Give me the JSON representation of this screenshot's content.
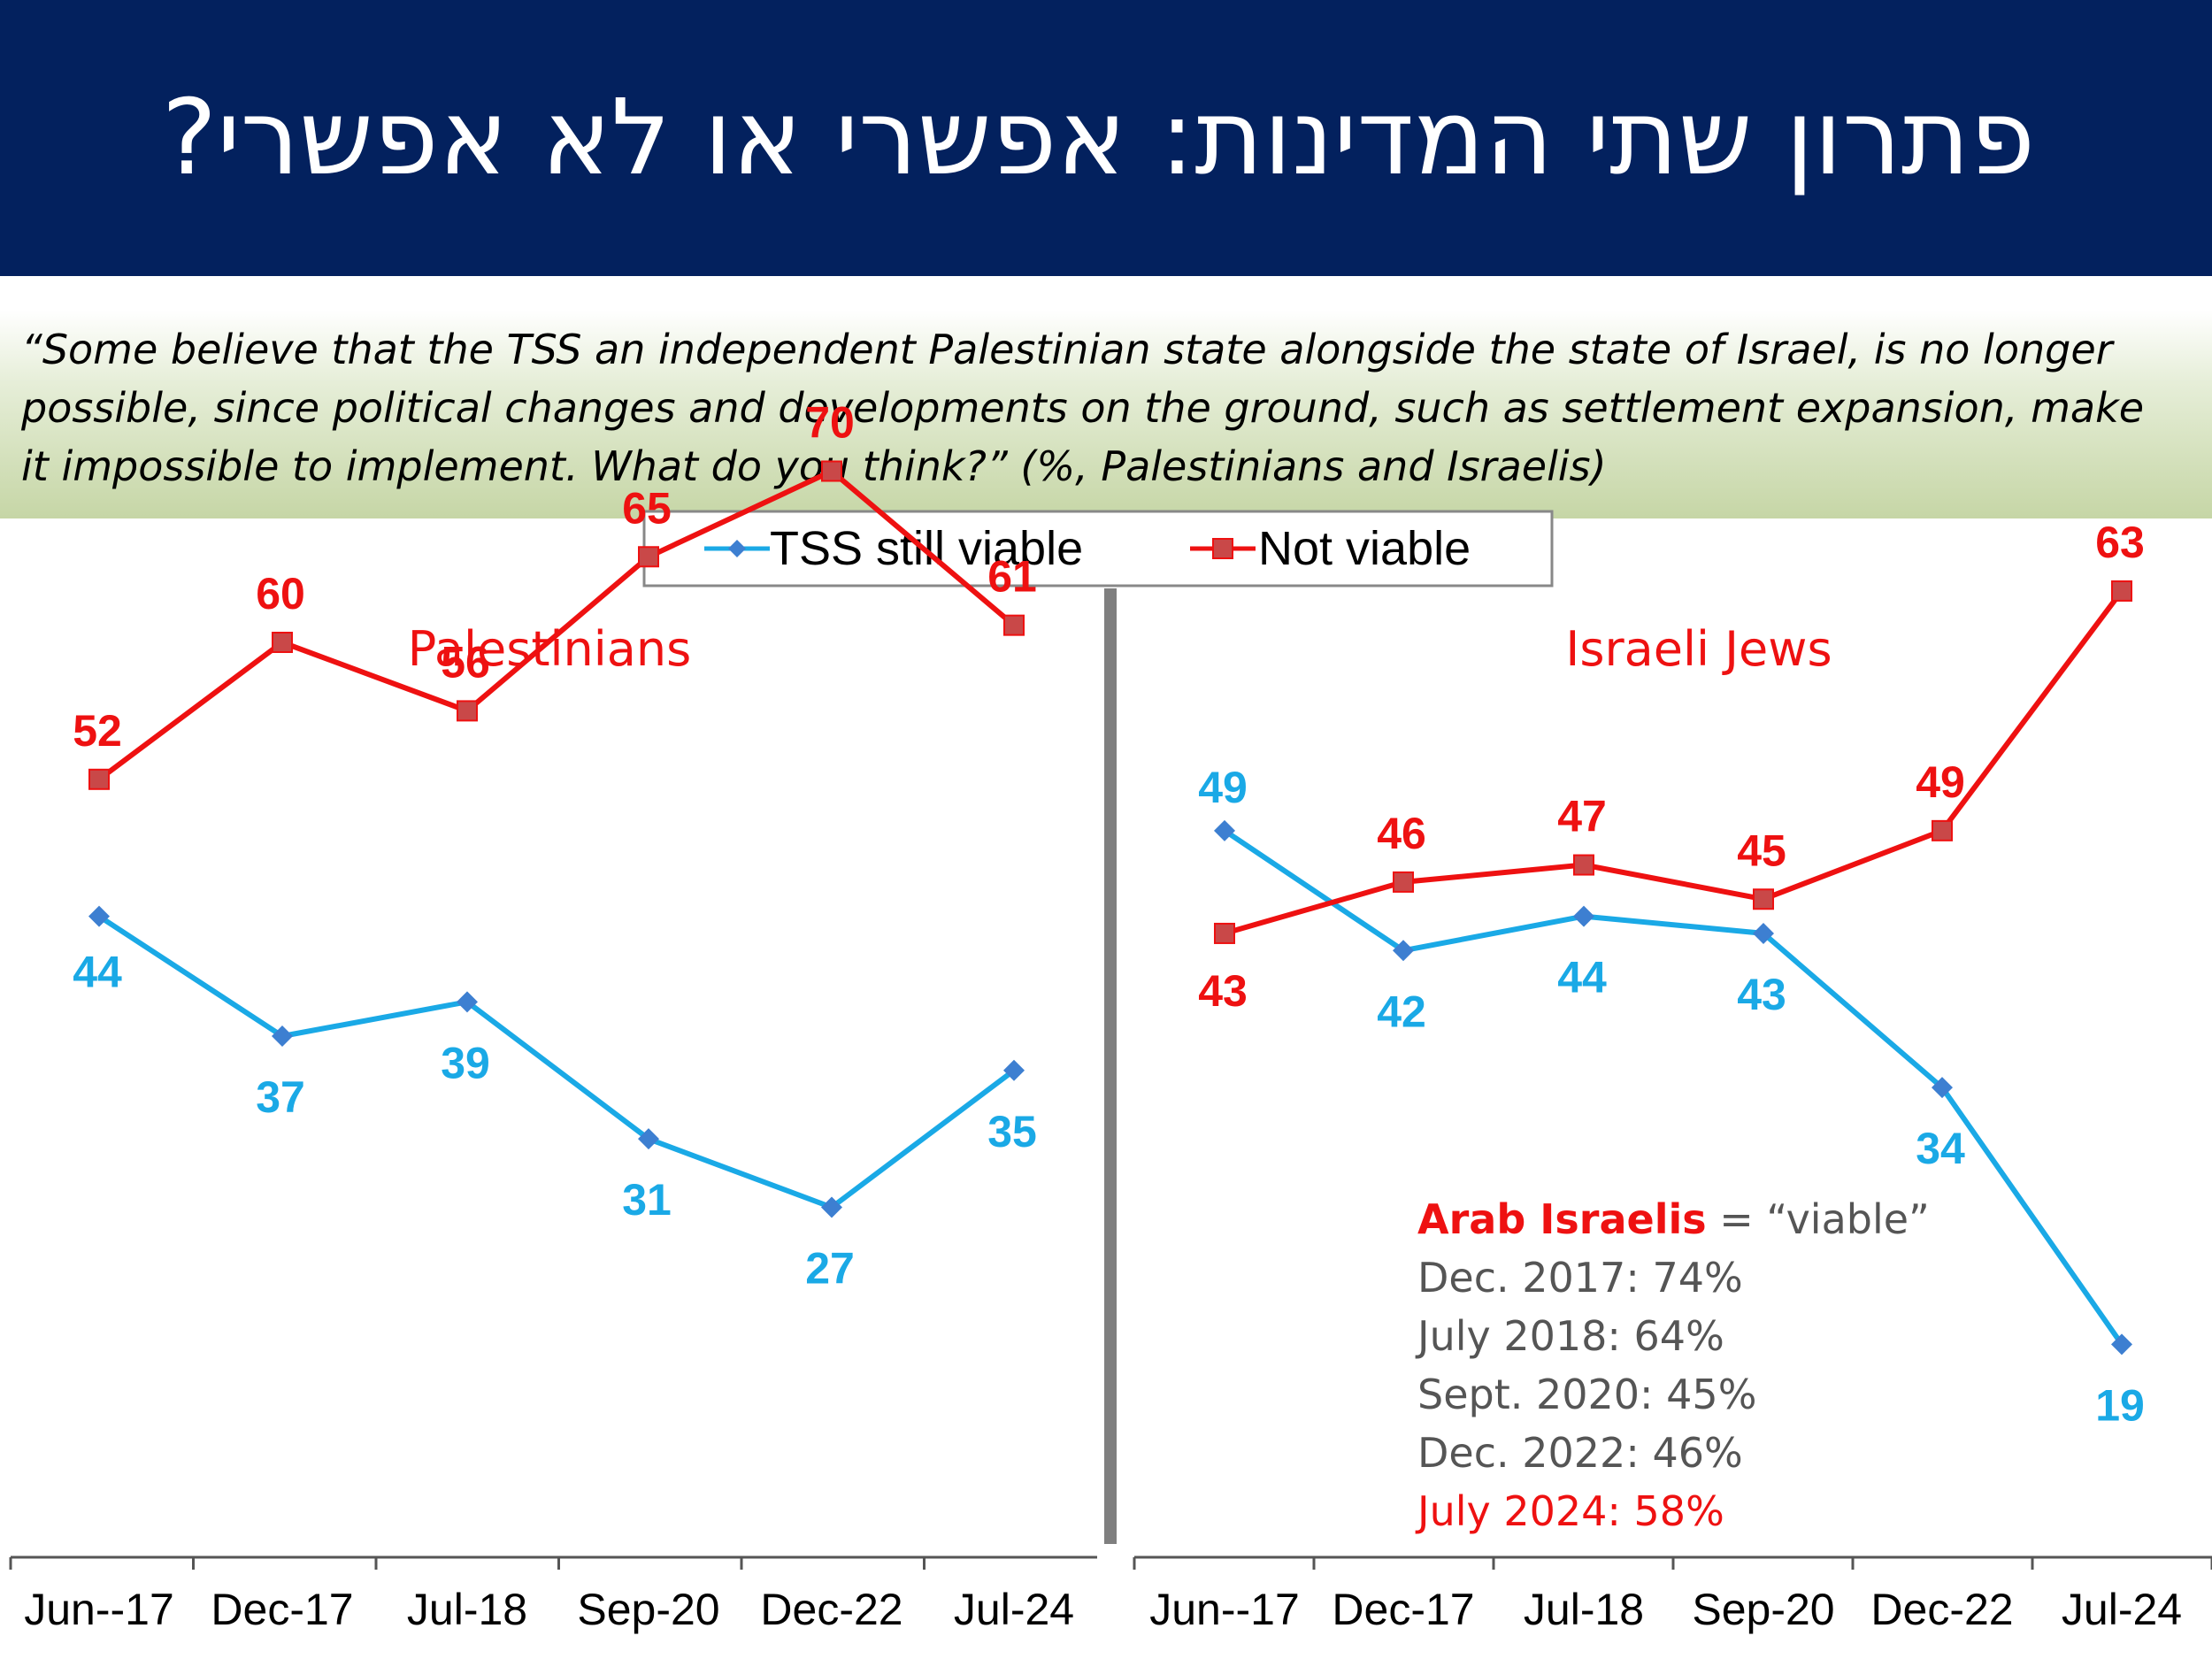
{
  "header": {
    "title": "פתרון שתי המדינות: אפשרי או לא אפשרי?",
    "background": "#03215e"
  },
  "question": "“Some believe that the TSS an independent Palestinian state alongside the state of Israel, is no longer possible, since political changes and developments on the ground, such as settlement expansion, make it impossible to implement. What do you think?” (%, Palestinians and Israelis)",
  "legend": {
    "items": [
      "TSS still viable",
      "Not viable"
    ]
  },
  "colors": {
    "viable": "#1aa9e6",
    "viable_marker": "#3d7fd1",
    "not_viable": "#ee1111",
    "not_viable_marker": "#c94848",
    "divider": "#7f7f7f"
  },
  "chart_data": [
    {
      "type": "line",
      "title": "Palestinians",
      "categories": [
        "Jun--17",
        "Dec-17",
        "Jul-18",
        "Sep-20",
        "Dec-22",
        "Jul-24"
      ],
      "series": [
        {
          "name": "TSS still viable",
          "values": [
            44,
            37,
            39,
            31,
            27,
            35
          ]
        },
        {
          "name": "Not viable",
          "values": [
            52,
            60,
            56,
            65,
            70,
            61
          ]
        }
      ],
      "ylim": [
        0,
        100
      ],
      "grid": false
    },
    {
      "type": "line",
      "title": "Israeli Jews",
      "categories": [
        "Jun--17",
        "Dec-17",
        "Jul-18",
        "Sep-20",
        "Dec-22",
        "Jul-24"
      ],
      "series": [
        {
          "name": "TSS still viable",
          "values": [
            49,
            42,
            44,
            43,
            34,
            19
          ]
        },
        {
          "name": "Not viable",
          "values": [
            43,
            46,
            47,
            45,
            49,
            63
          ]
        }
      ],
      "ylim": [
        0,
        100
      ],
      "grid": false
    }
  ],
  "arab_note": {
    "label": "Arab Israelis",
    "suffix": " = “viable”",
    "lines": [
      "Dec. 2017: 74%",
      "July 2018: 64%",
      "Sept. 2020: 45%",
      "Dec. 2022: 46%"
    ],
    "last_line": "July 2024: 58%"
  }
}
